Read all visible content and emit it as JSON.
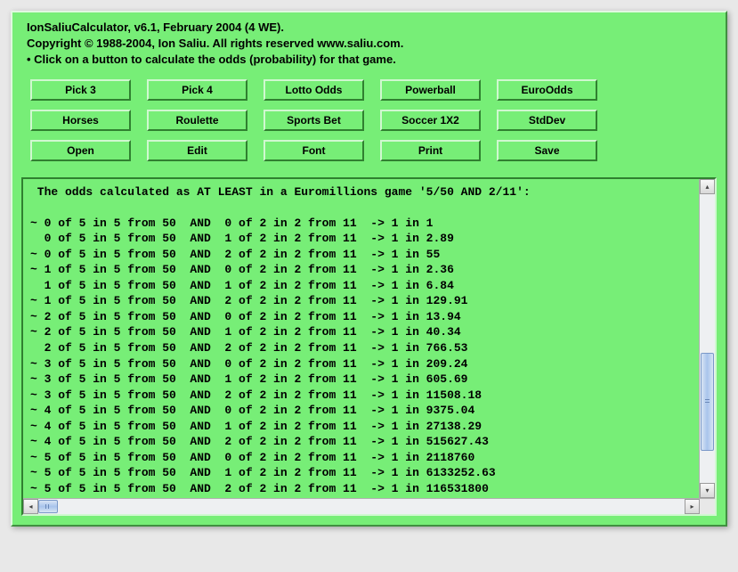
{
  "header": {
    "line1": "IonSaliuCalculator, v6.1, February 2004 (4 WE).",
    "line2": "Copyright © 1988-2004, Ion Saliu. All rights reserved www.saliu.com.",
    "line3": "• Click on a button to calculate the odds (probability) for that game."
  },
  "buttons": {
    "row1": [
      "Pick 3",
      "Pick 4",
      "Lotto Odds",
      "Powerball",
      "EuroOdds"
    ],
    "row2": [
      "Horses",
      "Roulette",
      "Sports Bet",
      "Soccer 1X2",
      "StdDev"
    ],
    "row3": [
      "Open",
      "Edit",
      "Font",
      "Print",
      "Save"
    ]
  },
  "output": {
    "title": " The odds calculated as AT LEAST in a Euromillions game '5/50 AND 2/11':",
    "lines": [
      "~ 0 of 5 in 5 from 50  AND  0 of 2 in 2 from 11  -> 1 in 1",
      "  0 of 5 in 5 from 50  AND  1 of 2 in 2 from 11  -> 1 in 2.89",
      "~ 0 of 5 in 5 from 50  AND  2 of 2 in 2 from 11  -> 1 in 55",
      "~ 1 of 5 in 5 from 50  AND  0 of 2 in 2 from 11  -> 1 in 2.36",
      "  1 of 5 in 5 from 50  AND  1 of 2 in 2 from 11  -> 1 in 6.84",
      "~ 1 of 5 in 5 from 50  AND  2 of 2 in 2 from 11  -> 1 in 129.91",
      "~ 2 of 5 in 5 from 50  AND  0 of 2 in 2 from 11  -> 1 in 13.94",
      "~ 2 of 5 in 5 from 50  AND  1 of 2 in 2 from 11  -> 1 in 40.34",
      "  2 of 5 in 5 from 50  AND  2 of 2 in 2 from 11  -> 1 in 766.53",
      "~ 3 of 5 in 5 from 50  AND  0 of 2 in 2 from 11  -> 1 in 209.24",
      "~ 3 of 5 in 5 from 50  AND  1 of 2 in 2 from 11  -> 1 in 605.69",
      "~ 3 of 5 in 5 from 50  AND  2 of 2 in 2 from 11  -> 1 in 11508.18",
      "~ 4 of 5 in 5 from 50  AND  0 of 2 in 2 from 11  -> 1 in 9375.04",
      "~ 4 of 5 in 5 from 50  AND  1 of 2 in 2 from 11  -> 1 in 27138.29",
      "~ 4 of 5 in 5 from 50  AND  2 of 2 in 2 from 11  -> 1 in 515627.43",
      "~ 5 of 5 in 5 from 50  AND  0 of 2 in 2 from 11  -> 1 in 2118760",
      "~ 5 of 5 in 5 from 50  AND  1 of 2 in 2 from 11  -> 1 in 6133252.63",
      "~ 5 of 5 in 5 from 50  AND  2 of 2 in 2 from 11  -> 1 in 116531800"
    ]
  },
  "colors": {
    "window_bg": "#77ee77",
    "button_bg": "#77ee77",
    "text": "#000000"
  }
}
